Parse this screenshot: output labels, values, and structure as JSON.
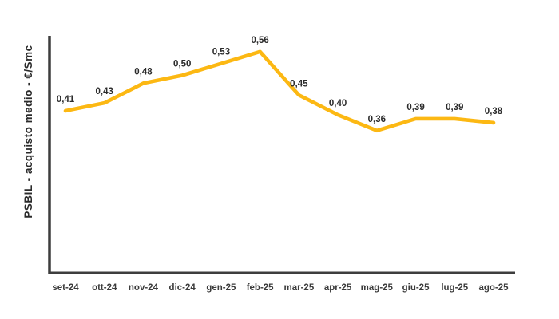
{
  "page": {
    "background": "#ffffff"
  },
  "chart_data": {
    "type": "line",
    "title": "",
    "xlabel": "",
    "ylabel": "PSBIL - acquisto medio - €/Smc",
    "categories": [
      "set-24",
      "ott-24",
      "nov-24",
      "dic-24",
      "gen-25",
      "feb-25",
      "mar-25",
      "apr-25",
      "mag-25",
      "giu-25",
      "lug-25",
      "ago-25"
    ],
    "values": [
      0.41,
      0.43,
      0.48,
      0.5,
      0.53,
      0.56,
      0.45,
      0.4,
      0.36,
      0.39,
      0.39,
      0.38
    ],
    "point_labels": [
      "0,41",
      "0,43",
      "0,48",
      "0,50",
      "0,53",
      "0,56",
      "0,45",
      "0,40",
      "0,36",
      "0,39",
      "0,39",
      "0,38"
    ],
    "ylim": [
      0,
      0.6
    ],
    "grid": false,
    "legend_position": "none",
    "line_color": "#FCB813",
    "axis_color": "#3d3d3d",
    "label_color": "#2b2b2b",
    "tick_label_color": "#3b3b3b"
  }
}
